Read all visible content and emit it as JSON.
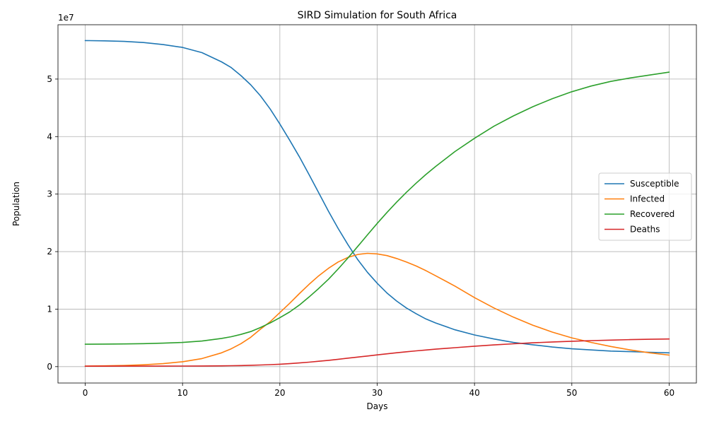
{
  "chart_data": {
    "type": "line",
    "title": "SIRD Simulation for South Africa",
    "xlabel": "Days",
    "ylabel": "Population",
    "y_offset_text": "1e7",
    "xlim": [
      -2.8,
      62.8
    ],
    "ylim": [
      -2850000,
      59450000
    ],
    "x_ticks": [
      0,
      10,
      20,
      30,
      40,
      50,
      60
    ],
    "x_tick_labels": [
      "0",
      "10",
      "20",
      "30",
      "40",
      "50",
      "60"
    ],
    "y_ticks": [
      0,
      10000000,
      20000000,
      30000000,
      40000000,
      50000000
    ],
    "y_tick_labels": [
      "0",
      "1",
      "2",
      "3",
      "4",
      "5"
    ],
    "grid": true,
    "legend_position": "center-right",
    "x": [
      0,
      2,
      4,
      6,
      8,
      10,
      12,
      14,
      15,
      16,
      17,
      18,
      19,
      20,
      21,
      22,
      23,
      24,
      25,
      26,
      27,
      28,
      29,
      30,
      31,
      32,
      33,
      34,
      35,
      36,
      38,
      40,
      42,
      44,
      46,
      48,
      50,
      52,
      54,
      56,
      58,
      60
    ],
    "series": [
      {
        "name": "Susceptible",
        "color": "#1f77b4",
        "values": [
          56700000,
          56650000,
          56550000,
          56350000,
          56000000,
          55500000,
          54600000,
          53000000,
          52000000,
          50600000,
          49000000,
          47100000,
          44800000,
          42200000,
          39400000,
          36500000,
          33400000,
          30200000,
          27000000,
          24000000,
          21200000,
          18600000,
          16400000,
          14500000,
          12800000,
          11400000,
          10200000,
          9200000,
          8300000,
          7600000,
          6400000,
          5500000,
          4800000,
          4200000,
          3800000,
          3400000,
          3100000,
          2900000,
          2700000,
          2600000,
          2500000,
          2400000
        ]
      },
      {
        "name": "Infected",
        "color": "#ff7f0e",
        "values": [
          100000,
          130000,
          200000,
          320000,
          520000,
          850000,
          1400000,
          2400000,
          3100000,
          4000000,
          5100000,
          6500000,
          7800000,
          9400000,
          11000000,
          12700000,
          14300000,
          15800000,
          17100000,
          18200000,
          19000000,
          19500000,
          19700000,
          19600000,
          19300000,
          18800000,
          18200000,
          17500000,
          16700000,
          15800000,
          14000000,
          12000000,
          10200000,
          8600000,
          7200000,
          6000000,
          5000000,
          4200000,
          3500000,
          2900000,
          2400000,
          2000000
        ]
      },
      {
        "name": "Recovered",
        "color": "#2ca02c",
        "values": [
          3900000,
          3920000,
          3950000,
          4000000,
          4080000,
          4200000,
          4450000,
          4900000,
          5200000,
          5600000,
          6100000,
          6800000,
          7600000,
          8500000,
          9500000,
          10700000,
          12100000,
          13600000,
          15200000,
          17000000,
          18900000,
          20900000,
          22900000,
          24900000,
          26800000,
          28600000,
          30300000,
          31900000,
          33400000,
          34800000,
          37400000,
          39700000,
          41800000,
          43600000,
          45200000,
          46600000,
          47800000,
          48800000,
          49600000,
          50200000,
          50700000,
          51200000
        ]
      },
      {
        "name": "Deaths",
        "color": "#d62728",
        "values": [
          80000,
          80000,
          82000,
          85000,
          90000,
          100000,
          115000,
          140000,
          160000,
          190000,
          230000,
          280000,
          340000,
          420000,
          520000,
          640000,
          780000,
          940000,
          1100000,
          1280000,
          1470000,
          1660000,
          1850000,
          2040000,
          2230000,
          2410000,
          2580000,
          2740000,
          2890000,
          3030000,
          3300000,
          3550000,
          3770000,
          3970000,
          4140000,
          4290000,
          4410000,
          4520000,
          4610000,
          4690000,
          4760000,
          4810000
        ]
      }
    ]
  }
}
